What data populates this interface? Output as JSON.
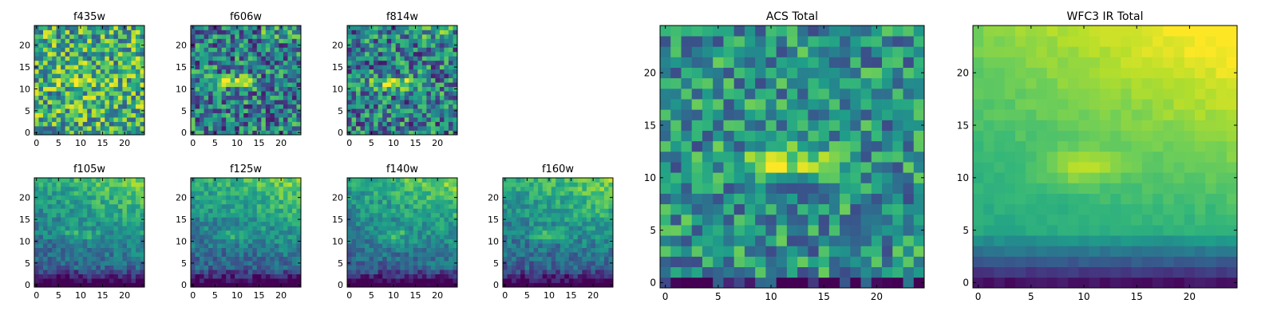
{
  "figure": {
    "panels": [
      {
        "title": "f435w",
        "pattern": "noisy"
      },
      {
        "title": "f606w",
        "pattern": "noisy_blob"
      },
      {
        "title": "f814w",
        "pattern": "noisy_blob"
      },
      {
        "title": "f105w",
        "pattern": "smooth"
      },
      {
        "title": "f125w",
        "pattern": "smooth"
      },
      {
        "title": "f140w",
        "pattern": "smooth"
      },
      {
        "title": "f160w",
        "pattern": "smooth"
      },
      {
        "title": "ACS Total",
        "pattern": "acs_total"
      },
      {
        "title": "WFC3 IR Total",
        "pattern": "wfc3_total"
      }
    ]
  },
  "chart_data": [
    {
      "type": "heatmap",
      "title": "f435w",
      "grid_size": 25,
      "colormap": "viridis",
      "xticks": [
        "0",
        "5",
        "10",
        "15",
        "20"
      ],
      "yticks": [
        "0",
        "5",
        "10",
        "15",
        "20"
      ],
      "xlim": [
        0,
        25
      ],
      "ylim": [
        0,
        25
      ]
    },
    {
      "type": "heatmap",
      "title": "f606w",
      "grid_size": 25,
      "colormap": "viridis",
      "xticks": [
        "0",
        "5",
        "10",
        "15",
        "20"
      ],
      "yticks": [
        "0",
        "5",
        "10",
        "15",
        "20"
      ],
      "xlim": [
        0,
        25
      ],
      "ylim": [
        0,
        25
      ]
    },
    {
      "type": "heatmap",
      "title": "f814w",
      "grid_size": 25,
      "colormap": "viridis",
      "xticks": [
        "0",
        "5",
        "10",
        "15",
        "20"
      ],
      "yticks": [
        "0",
        "5",
        "10",
        "15",
        "20"
      ],
      "xlim": [
        0,
        25
      ],
      "ylim": [
        0,
        25
      ]
    },
    {
      "type": "heatmap",
      "title": "f105w",
      "grid_size": 25,
      "colormap": "viridis",
      "xticks": [
        "0",
        "5",
        "10",
        "15",
        "20"
      ],
      "yticks": [
        "0",
        "5",
        "10",
        "15",
        "20"
      ],
      "xlim": [
        0,
        25
      ],
      "ylim": [
        0,
        25
      ]
    },
    {
      "type": "heatmap",
      "title": "f125w",
      "grid_size": 25,
      "colormap": "viridis",
      "xticks": [
        "0",
        "5",
        "10",
        "15",
        "20"
      ],
      "yticks": [
        "0",
        "5",
        "10",
        "15",
        "20"
      ],
      "xlim": [
        0,
        25
      ],
      "ylim": [
        0,
        25
      ]
    },
    {
      "type": "heatmap",
      "title": "f140w",
      "grid_size": 25,
      "colormap": "viridis",
      "xticks": [
        "0",
        "5",
        "10",
        "15",
        "20"
      ],
      "yticks": [
        "0",
        "5",
        "10",
        "15",
        "20"
      ],
      "xlim": [
        0,
        25
      ],
      "ylim": [
        0,
        25
      ]
    },
    {
      "type": "heatmap",
      "title": "f160w",
      "grid_size": 25,
      "colormap": "viridis",
      "xticks": [
        "0",
        "5",
        "10",
        "15",
        "20"
      ],
      "yticks": [
        "0",
        "5",
        "10",
        "15",
        "20"
      ],
      "xlim": [
        0,
        25
      ],
      "ylim": [
        0,
        25
      ]
    },
    {
      "type": "heatmap",
      "title": "ACS Total",
      "grid_size": 25,
      "colormap": "viridis",
      "xticks": [
        "0",
        "5",
        "10",
        "15",
        "20"
      ],
      "yticks": [
        "0",
        "5",
        "10",
        "15",
        "20"
      ],
      "xlim": [
        0,
        25
      ],
      "ylim": [
        0,
        25
      ]
    },
    {
      "type": "heatmap",
      "title": "WFC3 IR Total",
      "grid_size": 25,
      "colormap": "viridis",
      "xticks": [
        "0",
        "5",
        "10",
        "15",
        "20"
      ],
      "yticks": [
        "0",
        "5",
        "10",
        "15",
        "20"
      ],
      "xlim": [
        0,
        25
      ],
      "ylim": [
        0,
        25
      ]
    }
  ],
  "colors": {
    "viridis_stops": [
      "#440154",
      "#482878",
      "#3e4989",
      "#31688e",
      "#26828e",
      "#1f9e89",
      "#35b779",
      "#6ece58",
      "#b5de2b",
      "#fde725"
    ],
    "frame": "#000000",
    "background": "#ffffff"
  }
}
